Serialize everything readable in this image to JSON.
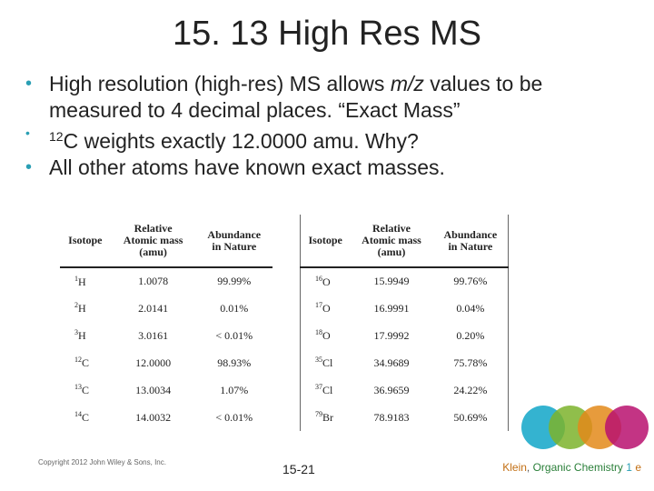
{
  "slide": {
    "title": "15. 13 High Res MS",
    "bullets": {
      "b1_pre": "High resolution (high-res) MS allows ",
      "b1_em": "m/z",
      "b1_post": " values to be measured to 4 decimal places. “Exact Mass”",
      "b2_sup": "12",
      "b2_text": "C weights exactly 12.0000 amu. Why?",
      "b3": "All other atoms have known exact masses."
    },
    "bullet_color": "#2a9fb4"
  },
  "tables": {
    "headers": {
      "isotope": "Isotope",
      "mass_line1": "Relative",
      "mass_line2": "Atomic mass",
      "mass_line3": "(amu)",
      "abund_line1": "Abundance",
      "abund_line2": "in Nature"
    },
    "left_rows": [
      {
        "mass_no": "1",
        "symbol": "H",
        "mass": "1.0078",
        "abundance": "99.99%"
      },
      {
        "mass_no": "2",
        "symbol": "H",
        "mass": "2.0141",
        "abundance": "0.01%"
      },
      {
        "mass_no": "3",
        "symbol": "H",
        "mass": "3.0161",
        "abundance": "< 0.01%"
      },
      {
        "mass_no": "12",
        "symbol": "C",
        "mass": "12.0000",
        "abundance": "98.93%"
      },
      {
        "mass_no": "13",
        "symbol": "C",
        "mass": "13.0034",
        "abundance": "1.07%"
      },
      {
        "mass_no": "14",
        "symbol": "C",
        "mass": "14.0032",
        "abundance": "< 0.01%"
      }
    ],
    "right_rows": [
      {
        "mass_no": "16",
        "symbol": "O",
        "mass": "15.9949",
        "abundance": "99.76%"
      },
      {
        "mass_no": "17",
        "symbol": "O",
        "mass": "16.9991",
        "abundance": "0.04%"
      },
      {
        "mass_no": "18",
        "symbol": "O",
        "mass": "17.9992",
        "abundance": "0.20%"
      },
      {
        "mass_no": "35",
        "symbol": "Cl",
        "mass": "34.9689",
        "abundance": "75.78%"
      },
      {
        "mass_no": "37",
        "symbol": "Cl",
        "mass": "36.9659",
        "abundance": "24.22%"
      },
      {
        "mass_no": "79",
        "symbol": "Br",
        "mass": "78.9183",
        "abundance": "50.69%"
      }
    ]
  },
  "footer": {
    "copyright": "Copyright 2012 John Wiley & Sons, Inc.",
    "page": "15-21",
    "author": "Klein",
    "separator": ", ",
    "book": "Organic Chemistry",
    "edition_num": "1",
    "edition_e": "e"
  },
  "decor_colors": [
    "#10a6c8",
    "#7cb32b",
    "#e38a1a",
    "#b8106e"
  ]
}
